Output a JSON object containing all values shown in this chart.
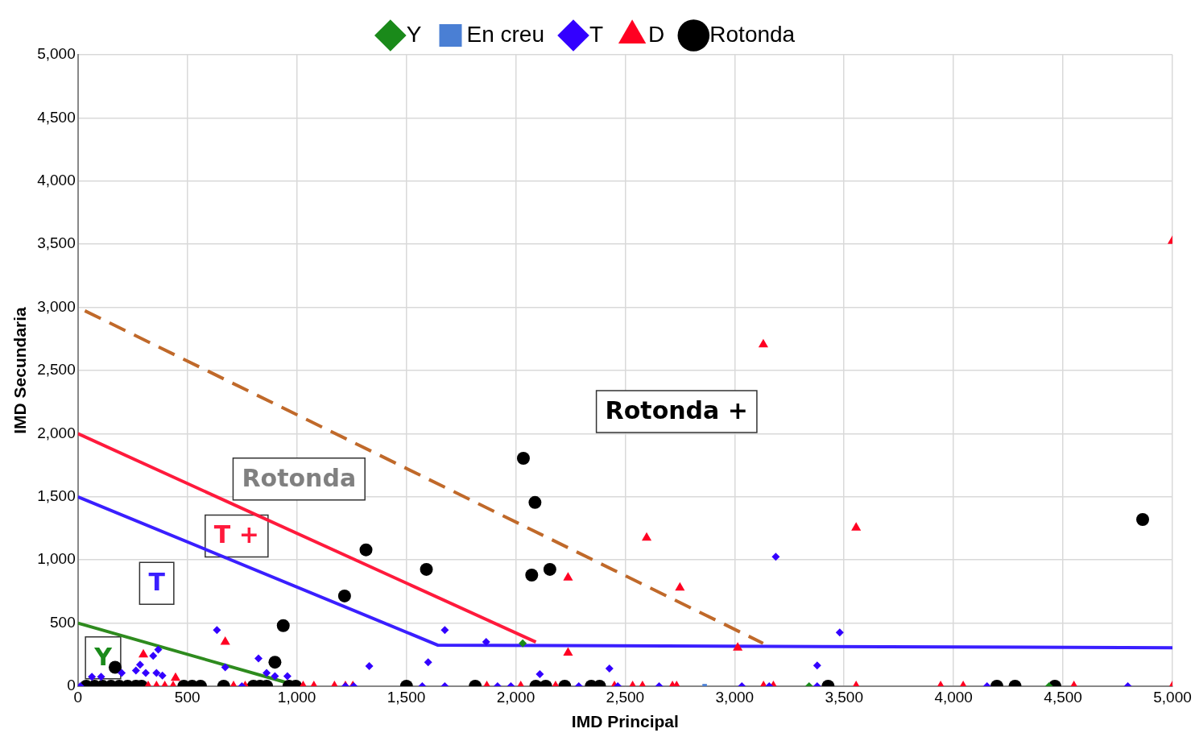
{
  "chart_data": {
    "type": "scatter",
    "xlabel": "IMD Principal",
    "ylabel": "IMD Secundaria",
    "xlim": [
      0,
      5000
    ],
    "ylim": [
      0,
      5000
    ],
    "xticks": [
      0,
      500,
      {
        "value": 1000,
        "label": "1,000"
      },
      {
        "value": 1500,
        "label": "1,500"
      },
      {
        "value": 2000,
        "label": "2,000"
      },
      {
        "value": 2500,
        "label": "2,500"
      },
      {
        "value": 3000,
        "label": "3,000"
      },
      {
        "value": 3500,
        "label": "3,500"
      },
      {
        "value": 4000,
        "label": "4,000"
      },
      {
        "value": 4500,
        "label": "4,500"
      },
      {
        "value": 5000,
        "label": "5,000"
      }
    ],
    "yticks": [
      0,
      500,
      {
        "value": 1000,
        "label": "1,000"
      },
      {
        "value": 1500,
        "label": "1,500"
      },
      {
        "value": 2000,
        "label": "2,000"
      },
      {
        "value": 2500,
        "label": "2,500"
      },
      {
        "value": 3000,
        "label": "3,000"
      },
      {
        "value": 3500,
        "label": "3,500"
      },
      {
        "value": 4000,
        "label": "4,000"
      },
      {
        "value": 4500,
        "label": "4,500"
      },
      {
        "value": 5000,
        "label": "5,000"
      }
    ],
    "grid": true,
    "legend": "top",
    "series": [
      {
        "name": "Y",
        "color": "#1a8a1a",
        "marker": "diamond",
        "x": [
          2032,
          3340,
          4436
        ],
        "values": [
          340,
          0,
          0
        ]
      },
      {
        "name": "En creu",
        "color": "#4a7fd4",
        "marker": "square",
        "x": [
          2863
        ],
        "values": [
          0
        ]
      },
      {
        "name": "T",
        "color": "#3300ff",
        "marker": "diamond",
        "x": [
          635,
          825,
          367,
          344,
          284,
          265,
          310,
          359,
          386,
          200,
          673,
          862,
          900,
          957,
          64,
          106,
          1676,
          1331,
          1600,
          1865,
          2110,
          2428,
          3480,
          3377,
          3188,
          11,
          749,
          1222,
          1260,
          1573,
          1676,
          1917,
          1978,
          2288,
          2466,
          2655,
          3033,
          3158,
          3377,
          4153,
          4796
        ],
        "values": [
          445,
          220,
          290,
          240,
          170,
          125,
          105,
          105,
          85,
          105,
          150,
          105,
          80,
          80,
          75,
          75,
          445,
          160,
          190,
          350,
          95,
          140,
          425,
          165,
          1025,
          0,
          0,
          0,
          0,
          0,
          0,
          0,
          0,
          0,
          0,
          0,
          0,
          0,
          0,
          0,
          0
        ]
      },
      {
        "name": "D",
        "color": "#ff0022",
        "marker": "triangle",
        "x": [
          299,
          446,
          673,
          2239,
          2239,
          2598,
          2750,
          3014,
          3131,
          3555,
          5000,
          321,
          359,
          397,
          435,
          711,
          764,
          1029,
          1078,
          1172,
          1222,
          1256,
          1868,
          2023,
          2182,
          2451,
          2534,
          2579,
          2716,
          2735,
          3132,
          3177,
          3555,
          3941,
          4044,
          4550,
          5000
        ],
        "values": [
          250,
          65,
          350,
          265,
          860,
          1175,
          780,
          305,
          2705,
          1255,
          3525,
          0,
          0,
          0,
          0,
          0,
          0,
          0,
          0,
          0,
          0,
          0,
          0,
          0,
          0,
          0,
          0,
          0,
          0,
          0,
          0,
          0,
          0,
          0,
          0,
          0,
          0
        ]
      },
      {
        "name": "Rotonda",
        "color": "#000000",
        "marker": "circle",
        "x": [
          170,
          900,
          938,
          1218,
          1316,
          1592,
          2035,
          2088,
          2073,
          2156,
          4864,
          38,
          76,
          113,
          151,
          189,
          227,
          265,
          291,
          484,
          522,
          560,
          666,
          802,
          832,
          862,
          964,
          995,
          1501,
          1815,
          2092,
          2137,
          2224,
          2345,
          2383,
          3427,
          4198,
          4281,
          4463
        ],
        "values": [
          150,
          190,
          480,
          715,
          1080,
          925,
          1805,
          1455,
          880,
          925,
          1320,
          0,
          0,
          0,
          0,
          0,
          0,
          0,
          0,
          0,
          0,
          0,
          0,
          0,
          0,
          0,
          0,
          0,
          0,
          0,
          0,
          0,
          0,
          0,
          0,
          0,
          0,
          0,
          0
        ]
      },
      {
        "type": "line",
        "color": "#2e8b1e",
        "line_style": "solid",
        "x": [
          0,
          950
        ],
        "values": [
          500,
          30
        ]
      },
      {
        "type": "line",
        "color": "#3a1fff",
        "line_style": "solid",
        "x": [
          0,
          1645,
          5000
        ],
        "values": [
          1500,
          325,
          305
        ]
      },
      {
        "type": "line",
        "color": "#ff1a3c",
        "line_style": "solid",
        "x": [
          0,
          2092
        ],
        "values": [
          2000,
          350
        ]
      },
      {
        "type": "line",
        "color": "#c0692a",
        "line_style": "dashed",
        "x": [
          0,
          3130
        ],
        "values": [
          3000,
          340
        ]
      }
    ],
    "annotations": [
      "Rotonda +",
      "Rotonda",
      "T +",
      "T",
      "Y"
    ]
  }
}
